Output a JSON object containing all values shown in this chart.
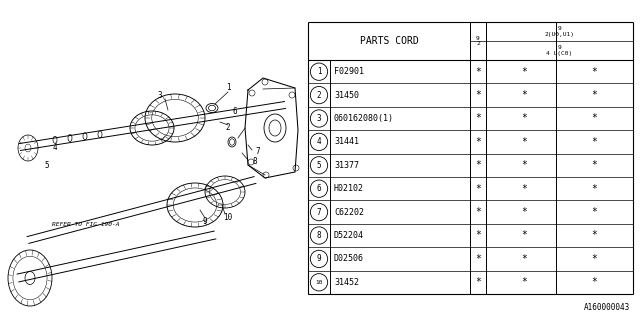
{
  "bg_color": "#ffffff",
  "title_code": "A160000043",
  "table": {
    "header_col1": "PARTS CORD",
    "header_col2": "9\n2",
    "header_col3_top": "9\n2(U0,U1)",
    "header_col3_bot": "9\n4 U(C0)",
    "rows": [
      {
        "num": "1",
        "code": "F02901"
      },
      {
        "num": "2",
        "code": "31450"
      },
      {
        "num": "3",
        "code": "060162080(1)"
      },
      {
        "num": "4",
        "code": "31441"
      },
      {
        "num": "5",
        "code": "31377"
      },
      {
        "num": "6",
        "code": "H02102"
      },
      {
        "num": "7",
        "code": "C62202"
      },
      {
        "num": "8",
        "code": "D52204"
      },
      {
        "num": "9",
        "code": "D02506"
      },
      {
        "num": "10",
        "code": "31452"
      }
    ]
  },
  "refer_text": "REFER TO FIG 190-A",
  "line_color": "#000000",
  "text_color": "#000000"
}
